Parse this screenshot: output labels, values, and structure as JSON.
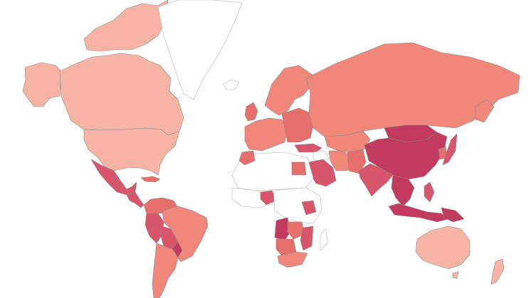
{
  "map": {
    "projection": "mercator",
    "legend": null,
    "colors": {
      "background": "#ffffff",
      "no_data": "#ffffff",
      "border": "#8a8a8a",
      "level_1": "#f7b4a4",
      "level_2": "#f0877a",
      "level_3": "#e76f6b",
      "level_4": "#d8556c",
      "level_5": "#c23a5f"
    },
    "regions": [
      {
        "id": "greenland",
        "level": "none"
      },
      {
        "id": "canada",
        "level": 1
      },
      {
        "id": "alaska",
        "level": 1
      },
      {
        "id": "usa",
        "level": 1
      },
      {
        "id": "mexico",
        "level": 4
      },
      {
        "id": "central-america",
        "level": 4
      },
      {
        "id": "caribbean",
        "level": 3
      },
      {
        "id": "colombia-venezuela",
        "level": 3
      },
      {
        "id": "brazil",
        "level": 2
      },
      {
        "id": "peru",
        "level": 4
      },
      {
        "id": "bolivia",
        "level": 4
      },
      {
        "id": "paraguay",
        "level": 5
      },
      {
        "id": "argentina-chile",
        "level": 2
      },
      {
        "id": "iceland",
        "level": "none"
      },
      {
        "id": "uk-ireland",
        "level": 3
      },
      {
        "id": "scandinavia",
        "level": 2
      },
      {
        "id": "western-europe",
        "level": 2
      },
      {
        "id": "eastern-europe",
        "level": 3
      },
      {
        "id": "russia",
        "level": 2
      },
      {
        "id": "turkey",
        "level": 4
      },
      {
        "id": "middle-east",
        "level": "none"
      },
      {
        "id": "saudi-arabia",
        "level": 4
      },
      {
        "id": "egypt",
        "level": 3
      },
      {
        "id": "iran",
        "level": 2
      },
      {
        "id": "afghanistan-pakistan",
        "level": 3
      },
      {
        "id": "central-asia",
        "level": 2
      },
      {
        "id": "mongolia",
        "level": 5
      },
      {
        "id": "china",
        "level": 5
      },
      {
        "id": "india",
        "level": 4
      },
      {
        "id": "southeast-asia",
        "level": 5
      },
      {
        "id": "japan",
        "level": 4
      },
      {
        "id": "korea",
        "level": 3
      },
      {
        "id": "philippines",
        "level": 4
      },
      {
        "id": "indonesia",
        "level": 5
      },
      {
        "id": "papua",
        "level": 5
      },
      {
        "id": "australia",
        "level": 1
      },
      {
        "id": "new-zealand",
        "level": 1
      },
      {
        "id": "north-africa",
        "level": "none"
      },
      {
        "id": "morocco",
        "level": 3
      },
      {
        "id": "west-africa",
        "level": "none"
      },
      {
        "id": "nigeria",
        "level": 4
      },
      {
        "id": "central-africa",
        "level": "none"
      },
      {
        "id": "kenya",
        "level": 4
      },
      {
        "id": "angola",
        "level": 5
      },
      {
        "id": "zambia",
        "level": 3
      },
      {
        "id": "namibia-botswana",
        "level": 3
      },
      {
        "id": "south-africa",
        "level": 2
      },
      {
        "id": "mozambique",
        "level": 4
      },
      {
        "id": "madagascar",
        "level": "none"
      }
    ]
  }
}
